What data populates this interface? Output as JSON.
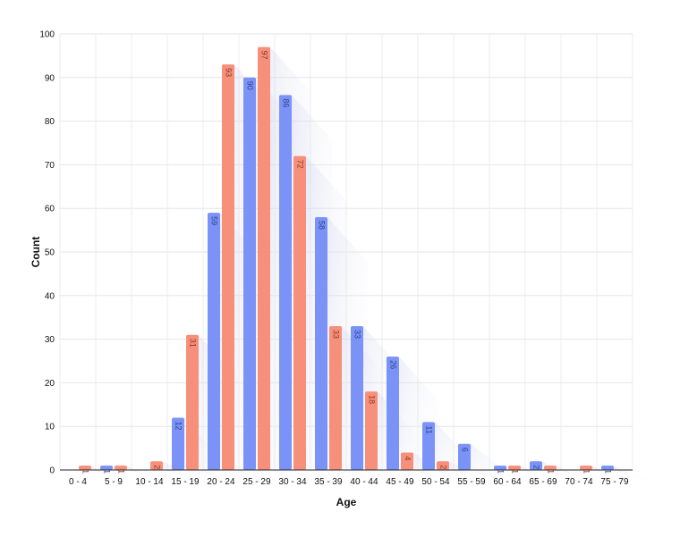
{
  "chart_data": {
    "type": "bar",
    "xlabel": "Age",
    "ylabel": "Count",
    "ylim": [
      0,
      100
    ],
    "yticks": [
      0,
      10,
      20,
      30,
      40,
      50,
      60,
      70,
      80,
      90,
      100
    ],
    "grid": true,
    "legend": "none",
    "categories": [
      "0 - 4",
      "5 - 9",
      "10 - 14",
      "15 - 19",
      "20 - 24",
      "25 - 29",
      "30 - 34",
      "35 - 39",
      "40 - 44",
      "45 - 49",
      "50 - 54",
      "55 - 59",
      "60 - 64",
      "65 - 69",
      "70 - 74",
      "75 - 79"
    ],
    "series": [
      {
        "color": "#7b93f7",
        "values": [
          0,
          1,
          0,
          12,
          59,
          90,
          86,
          58,
          33,
          26,
          11,
          6,
          1,
          2,
          0,
          1
        ]
      },
      {
        "color": "#f7907b",
        "values": [
          1,
          1,
          2,
          31,
          93,
          97,
          72,
          33,
          18,
          4,
          2,
          0,
          1,
          1,
          1,
          0
        ]
      }
    ]
  }
}
